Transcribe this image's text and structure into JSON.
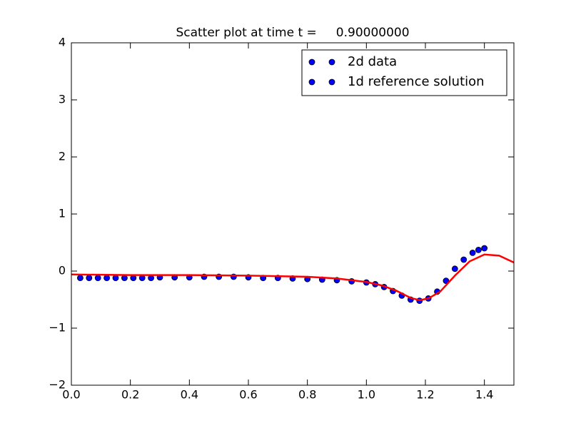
{
  "chart_data": {
    "type": "scatter-line",
    "title": "Scatter plot at time t =     0.90000000",
    "series": [
      {
        "name": "2d data",
        "kind": "scatter",
        "color": "#0000ff",
        "x": [
          0.03,
          0.06,
          0.09,
          0.12,
          0.15,
          0.18,
          0.21,
          0.24,
          0.27,
          0.3,
          0.35,
          0.4,
          0.45,
          0.5,
          0.55,
          0.6,
          0.65,
          0.7,
          0.75,
          0.8,
          0.85,
          0.9,
          0.95,
          1.0,
          1.03,
          1.06,
          1.09,
          1.12,
          1.15,
          1.18,
          1.21,
          1.24,
          1.27,
          1.3,
          1.33,
          1.36,
          1.38,
          1.4
        ],
        "values": [
          -0.12,
          -0.12,
          -0.12,
          -0.12,
          -0.12,
          -0.12,
          -0.12,
          -0.12,
          -0.12,
          -0.11,
          -0.11,
          -0.11,
          -0.1,
          -0.1,
          -0.1,
          -0.11,
          -0.12,
          -0.12,
          -0.13,
          -0.14,
          -0.15,
          -0.16,
          -0.18,
          -0.2,
          -0.23,
          -0.28,
          -0.35,
          -0.43,
          -0.5,
          -0.52,
          -0.48,
          -0.36,
          -0.17,
          0.04,
          0.2,
          0.32,
          0.37,
          0.4
        ]
      },
      {
        "name": "1d reference solution",
        "kind": "line",
        "color": "#ff0000",
        "x": [
          0,
          0.2,
          0.4,
          0.6,
          0.8,
          0.9,
          1.0,
          1.05,
          1.1,
          1.15,
          1.18,
          1.21,
          1.25,
          1.3,
          1.35,
          1.4,
          1.45,
          1.5
        ],
        "values": [
          -0.06,
          -0.07,
          -0.07,
          -0.08,
          -0.1,
          -0.13,
          -0.19,
          -0.25,
          -0.34,
          -0.47,
          -0.51,
          -0.48,
          -0.36,
          -0.08,
          0.17,
          0.29,
          0.27,
          0.15
        ]
      }
    ],
    "legend_marker_color": "#0000ff",
    "legend": "upper right",
    "xlim": [
      0,
      1.5
    ],
    "xticks": [
      {
        "value": 0,
        "label": "0.0"
      },
      0.2,
      0.4,
      0.6,
      0.8,
      {
        "value": 1,
        "label": "1.0"
      },
      1.2,
      1.4
    ],
    "ylim": [
      -2,
      4
    ],
    "yticks": [
      {
        "value": -2,
        "label": "−2"
      },
      {
        "value": -1,
        "label": "−1"
      },
      0,
      1,
      2,
      3,
      4
    ],
    "grid": false
  }
}
